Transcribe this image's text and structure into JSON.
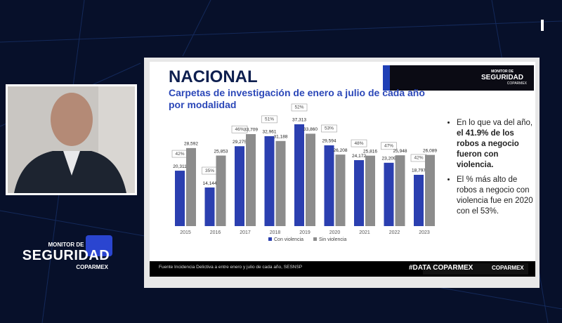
{
  "chart_data": {
    "type": "bar",
    "title": "NACIONAL",
    "subtitle": "Carpetas de investigación de enero a julio de cada año por modalidad",
    "categories": [
      "2015",
      "2016",
      "2017",
      "2018",
      "2019",
      "2020",
      "2021",
      "2022",
      "2023"
    ],
    "series": [
      {
        "name": "Con violencia",
        "color": "#2b3fb0",
        "values": [
          20311,
          14144,
          29275,
          32961,
          37313,
          29594,
          24172,
          23209,
          18797
        ],
        "value_labels": [
          "20,311",
          "14,144",
          "29,275",
          "32,961",
          "37,313",
          "29,594",
          "24,172",
          "23,209",
          "18,797"
        ]
      },
      {
        "name": "Sin violencia",
        "color": "#8c8c8c",
        "values": [
          28592,
          25853,
          33709,
          31188,
          33860,
          26208,
          25816,
          25948,
          26089
        ],
        "value_labels": [
          "28,592",
          "25,853",
          "33,709",
          "31,188",
          "33,860",
          "26,208",
          "25,816",
          "25,948",
          "26,089"
        ]
      }
    ],
    "shares": {
      "values": [
        42,
        35,
        46,
        51,
        52,
        53,
        48,
        47,
        42
      ],
      "value_labels": [
        "42%",
        "35%",
        "46%",
        "51%",
        "52%",
        "53%",
        "48%",
        "47%",
        "42%"
      ]
    },
    "legend": "bottom"
  },
  "bullets": [
    {
      "lead": "En lo que va del año,",
      "bold": "el 41.9% de los robos a negocio fueron con violencia."
    },
    "El % más alto de robos a negocio con violencia fue en 2020 con el 53%."
  ],
  "logo": {
    "line1": "MONITOR DE",
    "line2": "SEGURIDAD",
    "line3": "COPARMEX"
  },
  "footer": {
    "source": "Fuente Incidencia Delictiva a entre enero y julio de cada año, SESNSP",
    "tag": "#DATA COPARMEX",
    "brand": "COPARMEX"
  }
}
